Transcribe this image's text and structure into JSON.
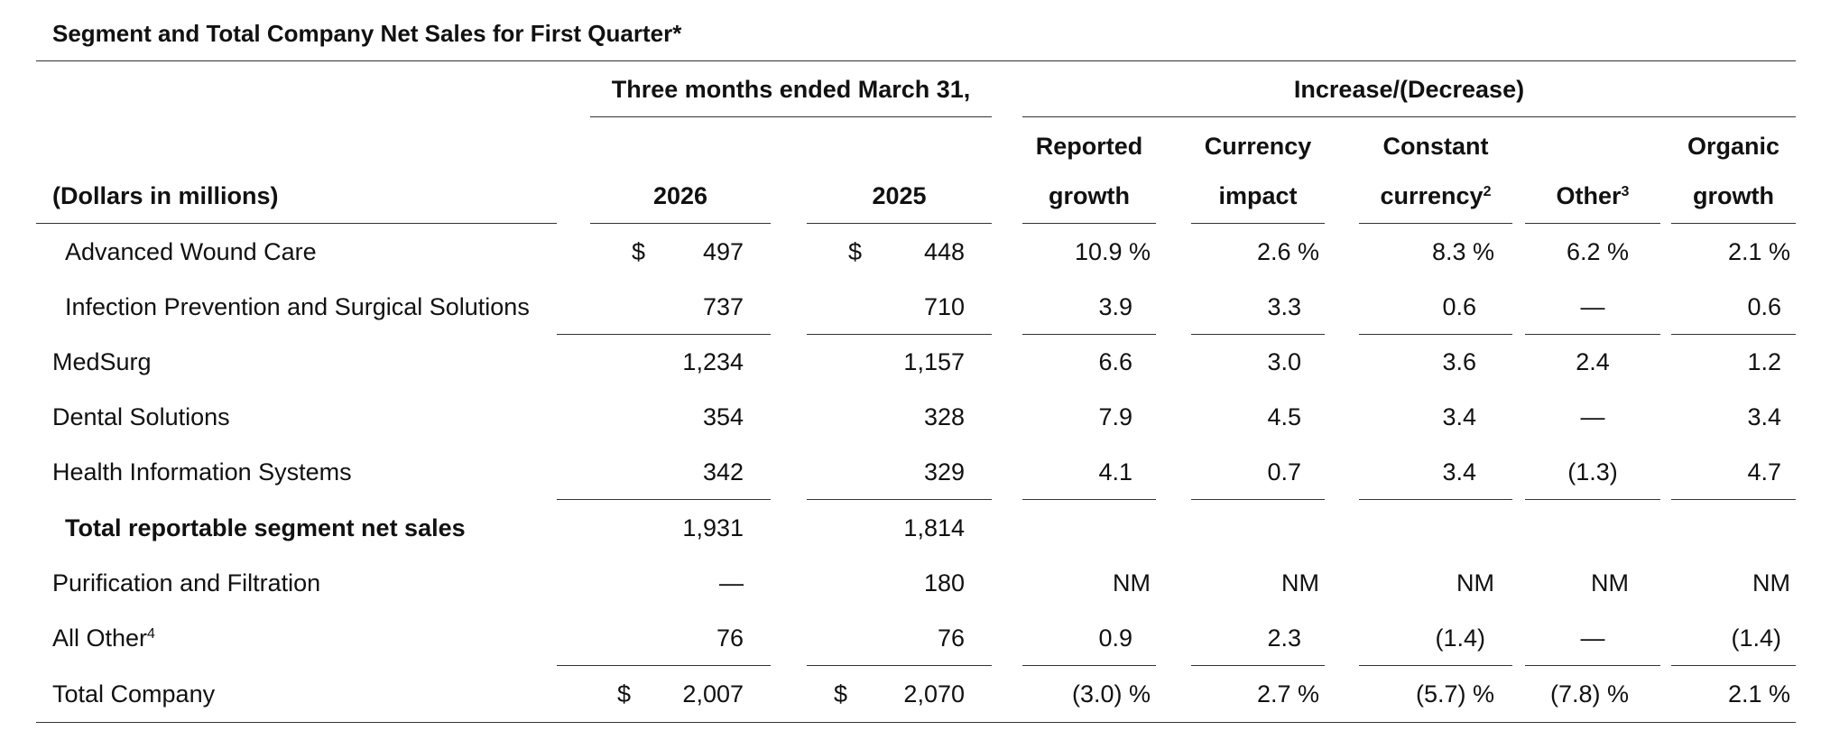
{
  "title": "Segment and Total Company Net Sales for First Quarter*",
  "header": {
    "period_group": "Three months ended March 31,",
    "change_group": "Increase/(Decrease)",
    "row_label": "(Dollars in millions)",
    "y2026": "2026",
    "y2025": "2025",
    "reported_l1": "Reported",
    "reported_l2": "growth",
    "currency_l1": "Currency",
    "currency_l2": "impact",
    "constant_l1": "Constant",
    "constant_l2": "currency",
    "constant_sup": "2",
    "other": "Other",
    "other_sup": "3",
    "organic_l1": "Organic",
    "organic_l2": "growth"
  },
  "rows": [
    {
      "label": "Advanced Wound Care",
      "d26": "$",
      "v26": "497",
      "d25": "$",
      "v25": "448",
      "reported": "10.9 %",
      "currency": "2.6 %",
      "constant": "8.3 %",
      "other": "6.2 %",
      "organic": "2.1 %"
    },
    {
      "label": "Infection Prevention and Surgical Solutions",
      "v26": "737",
      "v25": "710",
      "reported": "3.9",
      "currency": "3.3",
      "constant": "0.6",
      "other": "—",
      "organic": "0.6"
    },
    {
      "label": "MedSurg",
      "v26": "1,234",
      "v25": "1,157",
      "reported": "6.6",
      "currency": "3.0",
      "constant": "3.6",
      "other": "2.4",
      "organic": "1.2"
    },
    {
      "label": "Dental Solutions",
      "v26": "354",
      "v25": "328",
      "reported": "7.9",
      "currency": "4.5",
      "constant": "3.4",
      "other": "—",
      "organic": "3.4"
    },
    {
      "label": "Health Information Systems",
      "v26": "342",
      "v25": "329",
      "reported": "4.1",
      "currency": "0.7",
      "constant": "3.4",
      "other": "(1.3)",
      "organic": "4.7"
    },
    {
      "label": "Total reportable segment net sales",
      "v26": "1,931",
      "v25": "1,814"
    },
    {
      "label": "Purification and Filtration",
      "v26": "—",
      "v25": "180",
      "reported": "NM",
      "currency": "NM",
      "constant": "NM",
      "other": "NM",
      "organic": "NM"
    },
    {
      "label": "All Other",
      "label_sup": "4",
      "v26": "76",
      "v25": "76",
      "reported": "0.9",
      "currency": "2.3",
      "constant": "(1.4)",
      "other": "—",
      "organic": "(1.4)"
    },
    {
      "label": "Total Company",
      "d26": "$",
      "v26": "2,007",
      "d25": "$",
      "v25": "2,070",
      "reported": "(3.0) %",
      "currency": "2.7 %",
      "constant": "(5.7) %",
      "other": "(7.8) %",
      "organic": "2.1 %"
    }
  ]
}
